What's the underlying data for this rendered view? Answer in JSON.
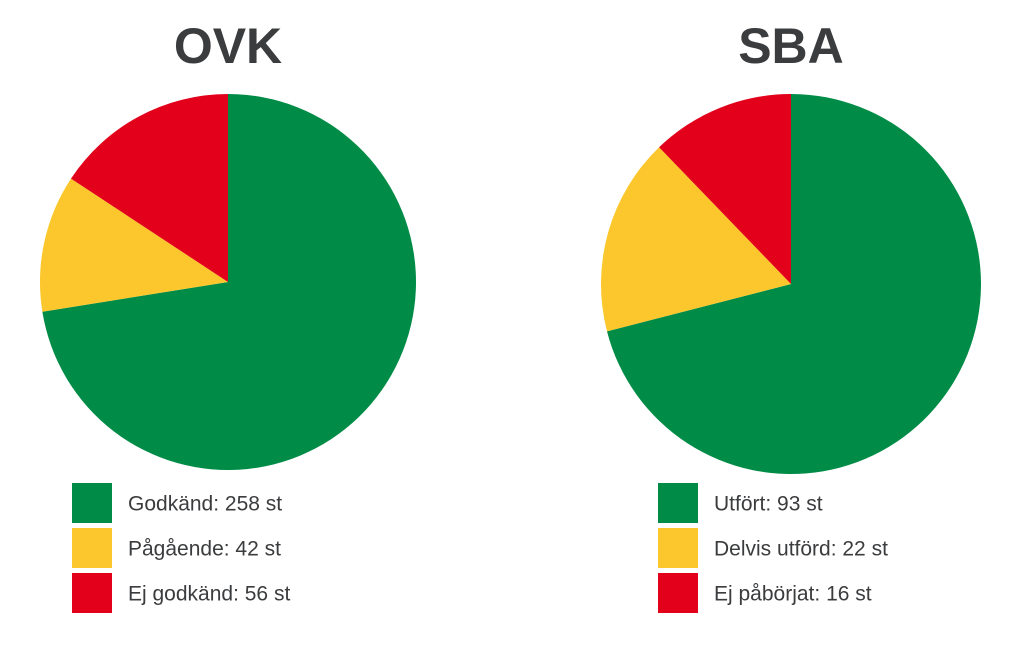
{
  "chart_data": [
    {
      "type": "pie",
      "title": "OVK",
      "values": [
        258,
        42,
        56
      ],
      "value_labels": [
        "Godkänd: 258 st",
        "Pågående: 42 st",
        "Ej godkänd: 56 st"
      ],
      "colors": [
        "#008c47",
        "#fcc72c",
        "#e2001a"
      ]
    },
    {
      "type": "pie",
      "title": "SBA",
      "values": [
        93,
        22,
        16
      ],
      "value_labels": [
        "Utfört: 93 st",
        "Delvis utförd: 22 st",
        "Ej påbörjat: 16 st"
      ],
      "colors": [
        "#008c47",
        "#fcc72c",
        "#e2001a"
      ]
    }
  ]
}
